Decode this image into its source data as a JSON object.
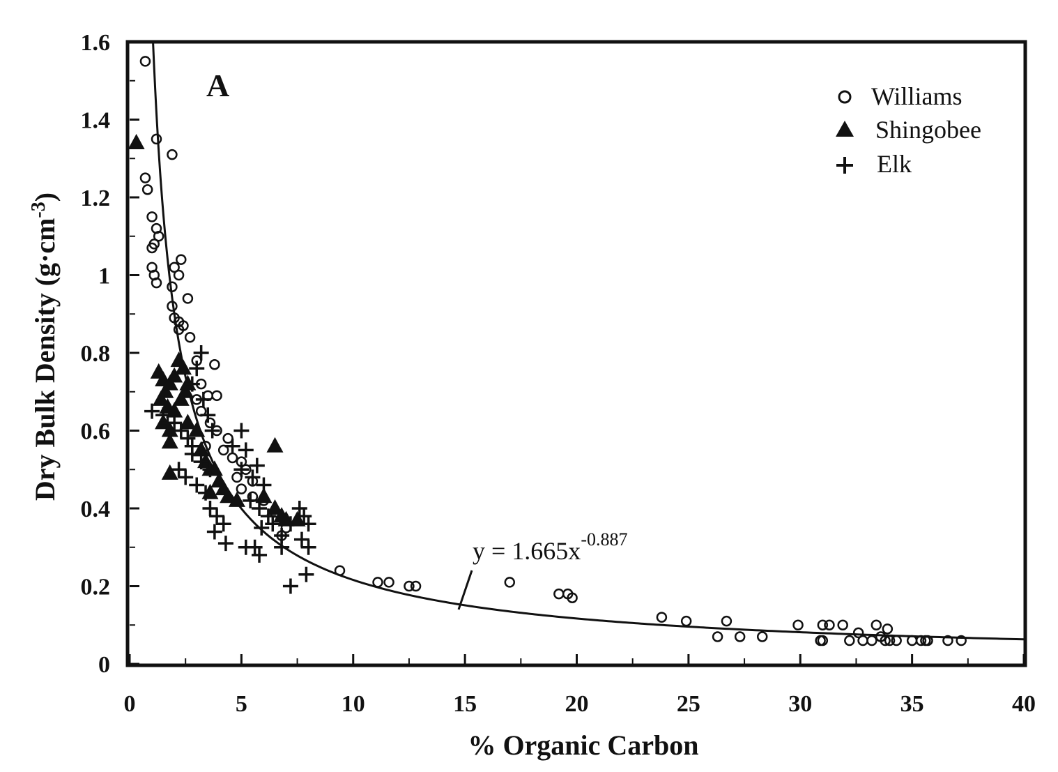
{
  "chart_data": {
    "type": "scatter",
    "panel_label": "A",
    "xlabel": "% Organic Carbon",
    "ylabel": "Dry Bulk Density (g·cm-3)",
    "ylabel_main": "Dry Bulk Density (g·cm",
    "ylabel_sup": "-3",
    "ylabel_close": ")",
    "xlim": [
      0,
      40
    ],
    "ylim": [
      0,
      1.6
    ],
    "x_ticks": [
      0,
      5,
      10,
      15,
      20,
      25,
      30,
      35,
      40
    ],
    "x_tick_labels": [
      "0",
      "5",
      "10",
      "15",
      "20",
      "25",
      "30",
      "35",
      "40"
    ],
    "y_ticks": [
      0,
      0.2,
      0.4,
      0.6,
      0.8,
      1,
      1.2,
      1.4,
      1.6
    ],
    "y_tick_labels": [
      "0",
      "0.2",
      "0.4",
      "0.6",
      "0.8",
      "1",
      "1.2",
      "1.4",
      "1.6"
    ],
    "grid": false,
    "legend_position": "top-right",
    "fit": {
      "label_main": "y = 1.665x",
      "label_sup": "-0.887",
      "a": 1.665,
      "b": -0.887
    },
    "series": [
      {
        "name": "Williams",
        "marker": "circle-open",
        "points": [
          [
            0.7,
            1.55
          ],
          [
            1.2,
            1.35
          ],
          [
            1.9,
            1.31
          ],
          [
            0.7,
            1.25
          ],
          [
            0.8,
            1.22
          ],
          [
            1.0,
            1.15
          ],
          [
            1.2,
            1.12
          ],
          [
            1.3,
            1.1
          ],
          [
            1.1,
            1.08
          ],
          [
            1.0,
            1.07
          ],
          [
            1.0,
            1.02
          ],
          [
            1.1,
            1.0
          ],
          [
            1.2,
            0.98
          ],
          [
            2.3,
            1.04
          ],
          [
            2.0,
            1.02
          ],
          [
            2.2,
            1.0
          ],
          [
            1.9,
            0.97
          ],
          [
            2.6,
            0.94
          ],
          [
            1.9,
            0.92
          ],
          [
            2.0,
            0.89
          ],
          [
            2.2,
            0.88
          ],
          [
            2.4,
            0.87
          ],
          [
            2.2,
            0.86
          ],
          [
            2.7,
            0.84
          ],
          [
            3.0,
            0.78
          ],
          [
            3.8,
            0.77
          ],
          [
            3.2,
            0.72
          ],
          [
            3.5,
            0.69
          ],
          [
            3.9,
            0.69
          ],
          [
            3.0,
            0.68
          ],
          [
            3.2,
            0.65
          ],
          [
            3.6,
            0.62
          ],
          [
            3.9,
            0.6
          ],
          [
            4.4,
            0.58
          ],
          [
            3.4,
            0.56
          ],
          [
            4.2,
            0.55
          ],
          [
            4.6,
            0.53
          ],
          [
            5.0,
            0.52
          ],
          [
            5.2,
            0.5
          ],
          [
            4.8,
            0.48
          ],
          [
            5.5,
            0.47
          ],
          [
            5.0,
            0.45
          ],
          [
            5.5,
            0.43
          ],
          [
            6.0,
            0.42
          ],
          [
            6.5,
            0.39
          ],
          [
            6.9,
            0.37
          ],
          [
            7.0,
            0.35
          ],
          [
            6.8,
            0.33
          ],
          [
            9.4,
            0.24
          ],
          [
            11.1,
            0.21
          ],
          [
            11.6,
            0.21
          ],
          [
            12.5,
            0.2
          ],
          [
            12.8,
            0.2
          ],
          [
            17.0,
            0.21
          ],
          [
            19.2,
            0.18
          ],
          [
            19.6,
            0.18
          ],
          [
            19.8,
            0.17
          ],
          [
            23.8,
            0.12
          ],
          [
            24.9,
            0.11
          ],
          [
            26.3,
            0.07
          ],
          [
            26.7,
            0.11
          ],
          [
            27.3,
            0.07
          ],
          [
            28.3,
            0.07
          ],
          [
            29.9,
            0.1
          ],
          [
            30.9,
            0.06
          ],
          [
            31.0,
            0.1
          ],
          [
            31.3,
            0.1
          ],
          [
            31.0,
            0.06
          ],
          [
            31.9,
            0.1
          ],
          [
            32.2,
            0.06
          ],
          [
            32.6,
            0.08
          ],
          [
            32.8,
            0.06
          ],
          [
            33.2,
            0.06
          ],
          [
            33.4,
            0.1
          ],
          [
            33.6,
            0.07
          ],
          [
            33.9,
            0.09
          ],
          [
            33.8,
            0.06
          ],
          [
            34.0,
            0.06
          ],
          [
            34.3,
            0.06
          ],
          [
            35.0,
            0.06
          ],
          [
            35.4,
            0.06
          ],
          [
            35.6,
            0.06
          ],
          [
            35.7,
            0.06
          ],
          [
            36.6,
            0.06
          ],
          [
            37.2,
            0.06
          ]
        ]
      },
      {
        "name": "Shingobee",
        "marker": "triangle-filled",
        "points": [
          [
            0.3,
            1.34
          ],
          [
            1.3,
            0.75
          ],
          [
            1.5,
            0.73
          ],
          [
            1.6,
            0.7
          ],
          [
            1.4,
            0.68
          ],
          [
            1.8,
            0.72
          ],
          [
            2.0,
            0.74
          ],
          [
            2.2,
            0.78
          ],
          [
            2.4,
            0.76
          ],
          [
            2.5,
            0.7
          ],
          [
            1.7,
            0.66
          ],
          [
            2.0,
            0.65
          ],
          [
            2.3,
            0.68
          ],
          [
            1.5,
            0.62
          ],
          [
            1.8,
            0.6
          ],
          [
            2.6,
            0.72
          ],
          [
            1.8,
            0.57
          ],
          [
            1.8,
            0.49
          ],
          [
            2.6,
            0.62
          ],
          [
            3.0,
            0.6
          ],
          [
            3.2,
            0.55
          ],
          [
            3.4,
            0.52
          ],
          [
            3.6,
            0.5
          ],
          [
            3.8,
            0.5
          ],
          [
            4.0,
            0.47
          ],
          [
            4.2,
            0.45
          ],
          [
            4.4,
            0.43
          ],
          [
            3.6,
            0.44
          ],
          [
            4.8,
            0.42
          ],
          [
            6.5,
            0.56
          ],
          [
            6.0,
            0.43
          ],
          [
            6.5,
            0.4
          ],
          [
            6.8,
            0.38
          ],
          [
            7.0,
            0.37
          ],
          [
            7.5,
            0.37
          ]
        ]
      },
      {
        "name": "Elk",
        "marker": "plus",
        "points": [
          [
            1.0,
            0.65
          ],
          [
            1.5,
            0.64
          ],
          [
            2.0,
            0.62
          ],
          [
            2.3,
            0.6
          ],
          [
            2.6,
            0.58
          ],
          [
            2.8,
            0.56
          ],
          [
            3.2,
            0.8
          ],
          [
            3.0,
            0.76
          ],
          [
            2.8,
            0.72
          ],
          [
            3.3,
            0.68
          ],
          [
            3.5,
            0.64
          ],
          [
            3.7,
            0.6
          ],
          [
            2.8,
            0.54
          ],
          [
            3.2,
            0.52
          ],
          [
            3.6,
            0.5
          ],
          [
            3.0,
            0.46
          ],
          [
            3.4,
            0.44
          ],
          [
            3.6,
            0.4
          ],
          [
            3.9,
            0.38
          ],
          [
            4.2,
            0.36
          ],
          [
            3.8,
            0.34
          ],
          [
            4.3,
            0.31
          ],
          [
            4.6,
            0.56
          ],
          [
            5.0,
            0.6
          ],
          [
            5.2,
            0.55
          ],
          [
            5.0,
            0.5
          ],
          [
            5.5,
            0.48
          ],
          [
            5.7,
            0.51
          ],
          [
            6.0,
            0.46
          ],
          [
            5.4,
            0.42
          ],
          [
            5.8,
            0.4
          ],
          [
            6.2,
            0.38
          ],
          [
            5.9,
            0.35
          ],
          [
            6.4,
            0.36
          ],
          [
            5.2,
            0.3
          ],
          [
            5.6,
            0.3
          ],
          [
            5.8,
            0.28
          ],
          [
            6.8,
            0.33
          ],
          [
            7.2,
            0.36
          ],
          [
            7.6,
            0.4
          ],
          [
            7.8,
            0.38
          ],
          [
            8.0,
            0.36
          ],
          [
            7.7,
            0.32
          ],
          [
            8.0,
            0.3
          ],
          [
            6.8,
            0.3
          ],
          [
            7.2,
            0.2
          ],
          [
            7.9,
            0.23
          ],
          [
            2.2,
            0.5
          ],
          [
            2.5,
            0.48
          ],
          [
            1.7,
            0.62
          ]
        ]
      }
    ]
  }
}
